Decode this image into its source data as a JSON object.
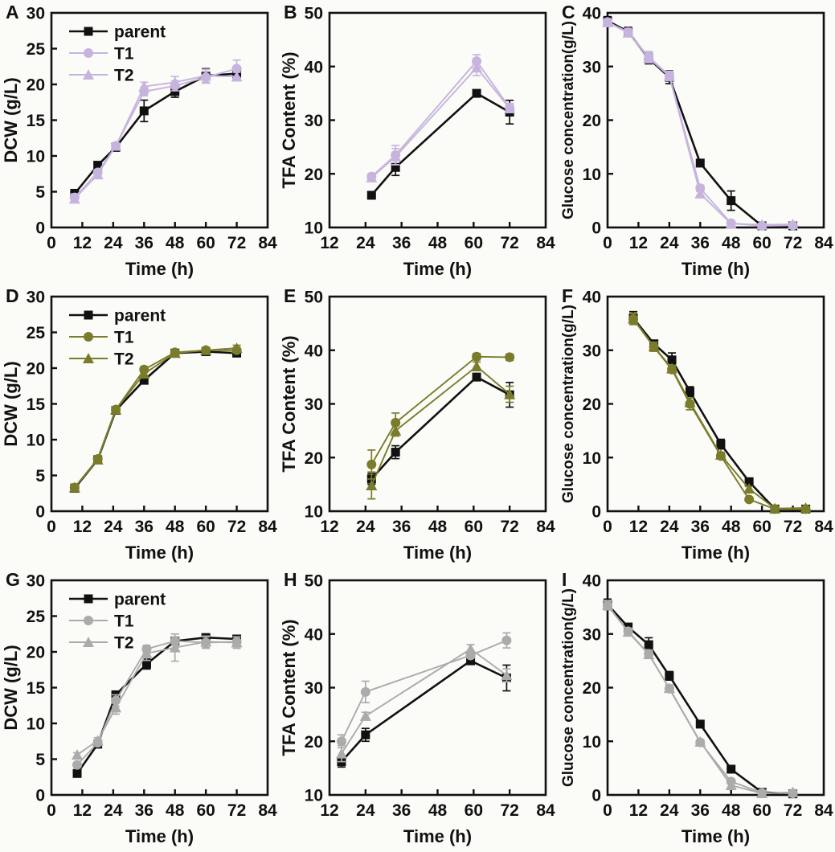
{
  "figure": {
    "background": "#fbfbf8",
    "text_color": "#111111",
    "row_accent_colors": [
      "#c7b4de",
      "#7a7c2b",
      "#ababab"
    ],
    "panel_letters": [
      "A",
      "B",
      "C",
      "D",
      "E",
      "F",
      "G",
      "H",
      "I"
    ]
  },
  "chart_data": [
    {
      "id": "A",
      "type": "line",
      "xlabel": "Time (h)",
      "ylabel": "DCW (g/L)",
      "xlim": [
        0,
        84
      ],
      "xticks": [
        0,
        12,
        24,
        36,
        48,
        60,
        72,
        84
      ],
      "ylim": [
        0,
        30
      ],
      "yticks": [
        0,
        5,
        10,
        15,
        20,
        25,
        30
      ],
      "grid": false,
      "legend": true,
      "legend_position": "top-left",
      "series": [
        {
          "name": "parent",
          "marker": "square",
          "color": "#111111",
          "x": [
            9,
            18,
            25,
            36,
            48,
            60,
            72
          ],
          "y": [
            4.7,
            8.7,
            11.2,
            16.3,
            19.0,
            21.2,
            21.5
          ],
          "err": [
            0.6,
            0.4,
            0.5,
            1.5,
            0.8,
            1.0,
            0.5
          ]
        },
        {
          "name": "T1",
          "marker": "circle",
          "color": "#c7b4de",
          "x": [
            9,
            18,
            25,
            36,
            48,
            60,
            72
          ],
          "y": [
            4.2,
            7.7,
            11.4,
            19.0,
            19.8,
            21.0,
            22.2
          ],
          "err": [
            0.5,
            0.4,
            0.4,
            0.6,
            0.7,
            0.8,
            1.2
          ]
        },
        {
          "name": "T2",
          "marker": "triangle",
          "color": "#c7b4de",
          "x": [
            9,
            18,
            25,
            36,
            48,
            60,
            72
          ],
          "y": [
            4.0,
            7.4,
            11.4,
            19.7,
            20.3,
            21.2,
            21.1
          ],
          "err": [
            0.4,
            0.3,
            0.4,
            0.6,
            0.8,
            0.9,
            0.6
          ]
        }
      ]
    },
    {
      "id": "B",
      "type": "line",
      "xlabel": "Time (h)",
      "ylabel": "TFA Content (%)",
      "xlim": [
        12,
        84
      ],
      "xticks": [
        12,
        24,
        36,
        48,
        60,
        72,
        84
      ],
      "ylim": [
        10,
        50
      ],
      "yticks": [
        10,
        20,
        30,
        40,
        50
      ],
      "grid": false,
      "legend": false,
      "series": [
        {
          "name": "parent",
          "marker": "square",
          "color": "#111111",
          "x": [
            26,
            34,
            61,
            72
          ],
          "y": [
            16.0,
            21.2,
            35.0,
            31.5
          ],
          "err": [
            0.4,
            1.5,
            0.5,
            2.2
          ]
        },
        {
          "name": "T1",
          "marker": "circle",
          "color": "#c7b4de",
          "x": [
            26,
            34,
            61,
            72
          ],
          "y": [
            19.5,
            23.5,
            41.0,
            32.3
          ],
          "err": [
            0.5,
            1.8,
            1.2,
            0.8
          ]
        },
        {
          "name": "T2",
          "marker": "triangle",
          "color": "#c7b4de",
          "x": [
            26,
            34,
            61,
            72
          ],
          "y": [
            19.3,
            23.2,
            39.8,
            32.2
          ],
          "err": [
            0.5,
            1.5,
            1.5,
            0.8
          ]
        }
      ]
    },
    {
      "id": "C",
      "type": "line",
      "xlabel": "Time (h)",
      "ylabel": "Glucose concentration(g/L)",
      "xlim": [
        0,
        84
      ],
      "xticks": [
        0,
        12,
        24,
        36,
        48,
        60,
        72,
        84
      ],
      "ylim": [
        0,
        40
      ],
      "yticks": [
        0,
        10,
        20,
        30,
        40
      ],
      "grid": false,
      "legend": false,
      "series": [
        {
          "name": "parent",
          "marker": "square",
          "color": "#111111",
          "x": [
            0,
            8,
            16,
            24,
            36,
            48,
            60,
            72
          ],
          "y": [
            38.5,
            36.5,
            31.5,
            28.0,
            12.0,
            5.0,
            0.3,
            0.3
          ],
          "err": [
            0.8,
            0.8,
            1.0,
            1.2,
            0.5,
            1.8,
            0.3,
            0.2
          ]
        },
        {
          "name": "T1",
          "marker": "circle",
          "color": "#c7b4de",
          "x": [
            0,
            8,
            16,
            24,
            36,
            48,
            60,
            72
          ],
          "y": [
            38.3,
            36.4,
            31.8,
            28.3,
            7.3,
            0.8,
            0.3,
            0.4
          ],
          "err": [
            0.6,
            0.7,
            1.0,
            0.8,
            0.6,
            0.3,
            0.2,
            0.2
          ]
        },
        {
          "name": "T2",
          "marker": "triangle",
          "color": "#c7b4de",
          "x": [
            0,
            8,
            16,
            24,
            36,
            48,
            60,
            72
          ],
          "y": [
            38.2,
            36.3,
            31.6,
            28.2,
            6.3,
            0.7,
            0.5,
            0.6
          ],
          "err": [
            0.6,
            0.7,
            0.9,
            0.8,
            0.5,
            0.3,
            0.2,
            0.2
          ]
        }
      ]
    },
    {
      "id": "D",
      "type": "line",
      "xlabel": "Time (h)",
      "ylabel": "DCW (g/L)",
      "xlim": [
        0,
        84
      ],
      "xticks": [
        0,
        12,
        24,
        36,
        48,
        60,
        72,
        84
      ],
      "ylim": [
        0,
        30
      ],
      "yticks": [
        0,
        5,
        10,
        15,
        20,
        25,
        30
      ],
      "grid": false,
      "legend": true,
      "legend_position": "top-left",
      "series": [
        {
          "name": "parent",
          "marker": "square",
          "color": "#111111",
          "x": [
            9,
            18,
            25,
            36,
            48,
            60,
            72
          ],
          "y": [
            3.2,
            7.2,
            14.1,
            18.3,
            22.1,
            22.3,
            22.1
          ],
          "err": [
            0.4,
            0.3,
            0.4,
            0.5,
            0.3,
            0.4,
            0.3
          ]
        },
        {
          "name": "T1",
          "marker": "circle",
          "color": "#7a7c2b",
          "x": [
            9,
            18,
            25,
            36,
            48,
            60,
            72
          ],
          "y": [
            3.3,
            7.3,
            14.2,
            19.8,
            22.2,
            22.5,
            22.5
          ],
          "err": [
            0.3,
            0.3,
            0.4,
            0.4,
            0.3,
            0.4,
            0.3
          ]
        },
        {
          "name": "T2",
          "marker": "triangle",
          "color": "#7a7c2b",
          "x": [
            9,
            18,
            25,
            36,
            48,
            60,
            72
          ],
          "y": [
            3.3,
            7.2,
            14.2,
            19.2,
            22.1,
            22.5,
            22.8
          ],
          "err": [
            0.5,
            0.4,
            0.4,
            0.4,
            0.3,
            0.4,
            0.4
          ]
        }
      ]
    },
    {
      "id": "E",
      "type": "line",
      "xlabel": "Time (h)",
      "ylabel": "TFA Content (%)",
      "xlim": [
        12,
        84
      ],
      "xticks": [
        12,
        24,
        36,
        48,
        60,
        72,
        84
      ],
      "ylim": [
        10,
        50
      ],
      "yticks": [
        10,
        20,
        30,
        40,
        50
      ],
      "grid": false,
      "legend": false,
      "series": [
        {
          "name": "parent",
          "marker": "square",
          "color": "#111111",
          "x": [
            26,
            34,
            61,
            72
          ],
          "y": [
            16.0,
            21.0,
            35.0,
            31.7
          ],
          "err": [
            1.0,
            1.2,
            0.5,
            2.3
          ]
        },
        {
          "name": "T1",
          "marker": "circle",
          "color": "#7a7c2b",
          "x": [
            26,
            34,
            61,
            72
          ],
          "y": [
            18.7,
            26.5,
            38.8,
            38.7
          ],
          "err": [
            2.7,
            1.8,
            0.6,
            0.6
          ]
        },
        {
          "name": "T2",
          "marker": "triangle",
          "color": "#7a7c2b",
          "x": [
            26,
            34,
            61,
            72
          ],
          "y": [
            14.8,
            25.0,
            37.0,
            31.8
          ],
          "err": [
            2.5,
            1.0,
            0.8,
            1.5
          ]
        }
      ]
    },
    {
      "id": "F",
      "type": "line",
      "xlabel": "Time (h)",
      "ylabel": "Glucose concentration(g/L)",
      "xlim": [
        0,
        84
      ],
      "xticks": [
        0,
        12,
        24,
        36,
        48,
        60,
        72,
        84
      ],
      "ylim": [
        0,
        40
      ],
      "yticks": [
        0,
        10,
        20,
        30,
        40
      ],
      "grid": false,
      "legend": false,
      "series": [
        {
          "name": "parent",
          "marker": "square",
          "color": "#111111",
          "x": [
            10,
            18,
            25,
            32,
            44,
            55,
            65,
            77
          ],
          "y": [
            36.0,
            31.2,
            28.2,
            22.3,
            12.5,
            5.5,
            0.4,
            0.4
          ],
          "err": [
            1.2,
            0.6,
            1.3,
            0.9,
            0.9,
            0.4,
            0.2,
            0.2
          ]
        },
        {
          "name": "T1",
          "marker": "circle",
          "color": "#7a7c2b",
          "x": [
            10,
            18,
            25,
            32,
            44,
            55,
            65,
            77
          ],
          "y": [
            35.8,
            30.6,
            26.4,
            20.0,
            10.3,
            2.2,
            0.4,
            0.4
          ],
          "err": [
            1.0,
            0.8,
            0.6,
            1.1,
            0.5,
            0.4,
            0.2,
            0.2
          ]
        },
        {
          "name": "T2",
          "marker": "triangle",
          "color": "#7a7c2b",
          "x": [
            10,
            18,
            25,
            32,
            44,
            55,
            65,
            77
          ],
          "y": [
            35.9,
            30.7,
            26.6,
            20.3,
            10.5,
            4.2,
            0.5,
            0.6
          ],
          "err": [
            1.0,
            0.8,
            0.6,
            0.8,
            0.5,
            0.4,
            0.2,
            0.2
          ]
        }
      ]
    },
    {
      "id": "G",
      "type": "line",
      "xlabel": "Time (h)",
      "ylabel": "DCW (g/L)",
      "xlim": [
        0,
        84
      ],
      "xticks": [
        0,
        12,
        24,
        36,
        48,
        60,
        72,
        84
      ],
      "ylim": [
        0,
        30
      ],
      "yticks": [
        0,
        5,
        10,
        15,
        20,
        25,
        30
      ],
      "grid": false,
      "legend": true,
      "legend_position": "top-left",
      "series": [
        {
          "name": "parent",
          "marker": "square",
          "color": "#111111",
          "x": [
            10,
            18,
            25,
            37,
            48,
            60,
            72
          ],
          "y": [
            3.0,
            7.1,
            14.0,
            18.3,
            21.5,
            22.0,
            21.8
          ],
          "err": [
            0.4,
            0.5,
            0.5,
            0.7,
            0.4,
            0.3,
            0.4
          ]
        },
        {
          "name": "T1",
          "marker": "circle",
          "color": "#ababab",
          "x": [
            10,
            18,
            25,
            37,
            48,
            60,
            72
          ],
          "y": [
            4.2,
            7.3,
            13.2,
            20.4,
            21.5,
            21.3,
            21.4
          ],
          "err": [
            0.3,
            0.4,
            0.8,
            0.5,
            0.6,
            0.8,
            0.7
          ]
        },
        {
          "name": "T2",
          "marker": "triangle",
          "color": "#ababab",
          "x": [
            10,
            18,
            25,
            37,
            48,
            60,
            72
          ],
          "y": [
            5.6,
            7.6,
            12.2,
            19.8,
            20.6,
            21.4,
            21.3
          ],
          "err": [
            0.3,
            0.4,
            0.9,
            1.0,
            1.9,
            0.8,
            0.8
          ]
        }
      ]
    },
    {
      "id": "H",
      "type": "line",
      "xlabel": "Time (h)",
      "ylabel": "TFA Content (%)",
      "xlim": [
        12,
        84
      ],
      "xticks": [
        12,
        24,
        36,
        48,
        60,
        72,
        84
      ],
      "ylim": [
        10,
        50
      ],
      "yticks": [
        10,
        20,
        30,
        40,
        50
      ],
      "grid": false,
      "legend": false,
      "series": [
        {
          "name": "parent",
          "marker": "square",
          "color": "#111111",
          "x": [
            16,
            24,
            59,
            71
          ],
          "y": [
            16.2,
            21.2,
            35.0,
            31.8
          ],
          "err": [
            1.0,
            1.2,
            0.4,
            2.4
          ]
        },
        {
          "name": "T1",
          "marker": "circle",
          "color": "#ababab",
          "x": [
            16,
            24,
            59,
            71
          ],
          "y": [
            20.0,
            29.2,
            36.0,
            38.8
          ],
          "err": [
            1.2,
            2.0,
            0.5,
            1.4
          ]
        },
        {
          "name": "T2",
          "marker": "triangle",
          "color": "#ababab",
          "x": [
            16,
            24,
            59,
            71
          ],
          "y": [
            17.7,
            24.7,
            37.2,
            32.3
          ],
          "err": [
            1.5,
            0.7,
            0.8,
            1.2
          ]
        }
      ]
    },
    {
      "id": "I",
      "type": "line",
      "xlabel": "Time (h)",
      "ylabel": "Glucose concentration(g/L)",
      "xlim": [
        0,
        84
      ],
      "xticks": [
        0,
        12,
        24,
        36,
        48,
        60,
        72,
        84
      ],
      "ylim": [
        0,
        40
      ],
      "yticks": [
        0,
        10,
        20,
        30,
        40
      ],
      "grid": false,
      "legend": false,
      "series": [
        {
          "name": "parent",
          "marker": "square",
          "color": "#111111",
          "x": [
            0,
            8,
            16,
            24,
            36,
            48,
            60,
            72
          ],
          "y": [
            35.5,
            31.3,
            28.0,
            22.2,
            13.2,
            4.8,
            0.5,
            0.2
          ],
          "err": [
            1.0,
            0.5,
            1.3,
            0.8,
            0.5,
            0.4,
            0.3,
            0.2
          ]
        },
        {
          "name": "T1",
          "marker": "circle",
          "color": "#ababab",
          "x": [
            0,
            8,
            16,
            24,
            36,
            48,
            60,
            72
          ],
          "y": [
            35.3,
            30.5,
            26.3,
            19.8,
            9.8,
            2.5,
            0.4,
            0.3
          ],
          "err": [
            0.8,
            0.6,
            0.7,
            0.6,
            0.4,
            0.4,
            0.2,
            0.2
          ]
        },
        {
          "name": "T2",
          "marker": "triangle",
          "color": "#ababab",
          "x": [
            0,
            8,
            16,
            24,
            36,
            48,
            60,
            72
          ],
          "y": [
            35.4,
            30.4,
            26.2,
            19.9,
            9.9,
            1.8,
            0.3,
            0.5
          ],
          "err": [
            0.8,
            0.6,
            0.7,
            0.6,
            0.4,
            0.4,
            0.2,
            0.3
          ]
        }
      ]
    }
  ]
}
